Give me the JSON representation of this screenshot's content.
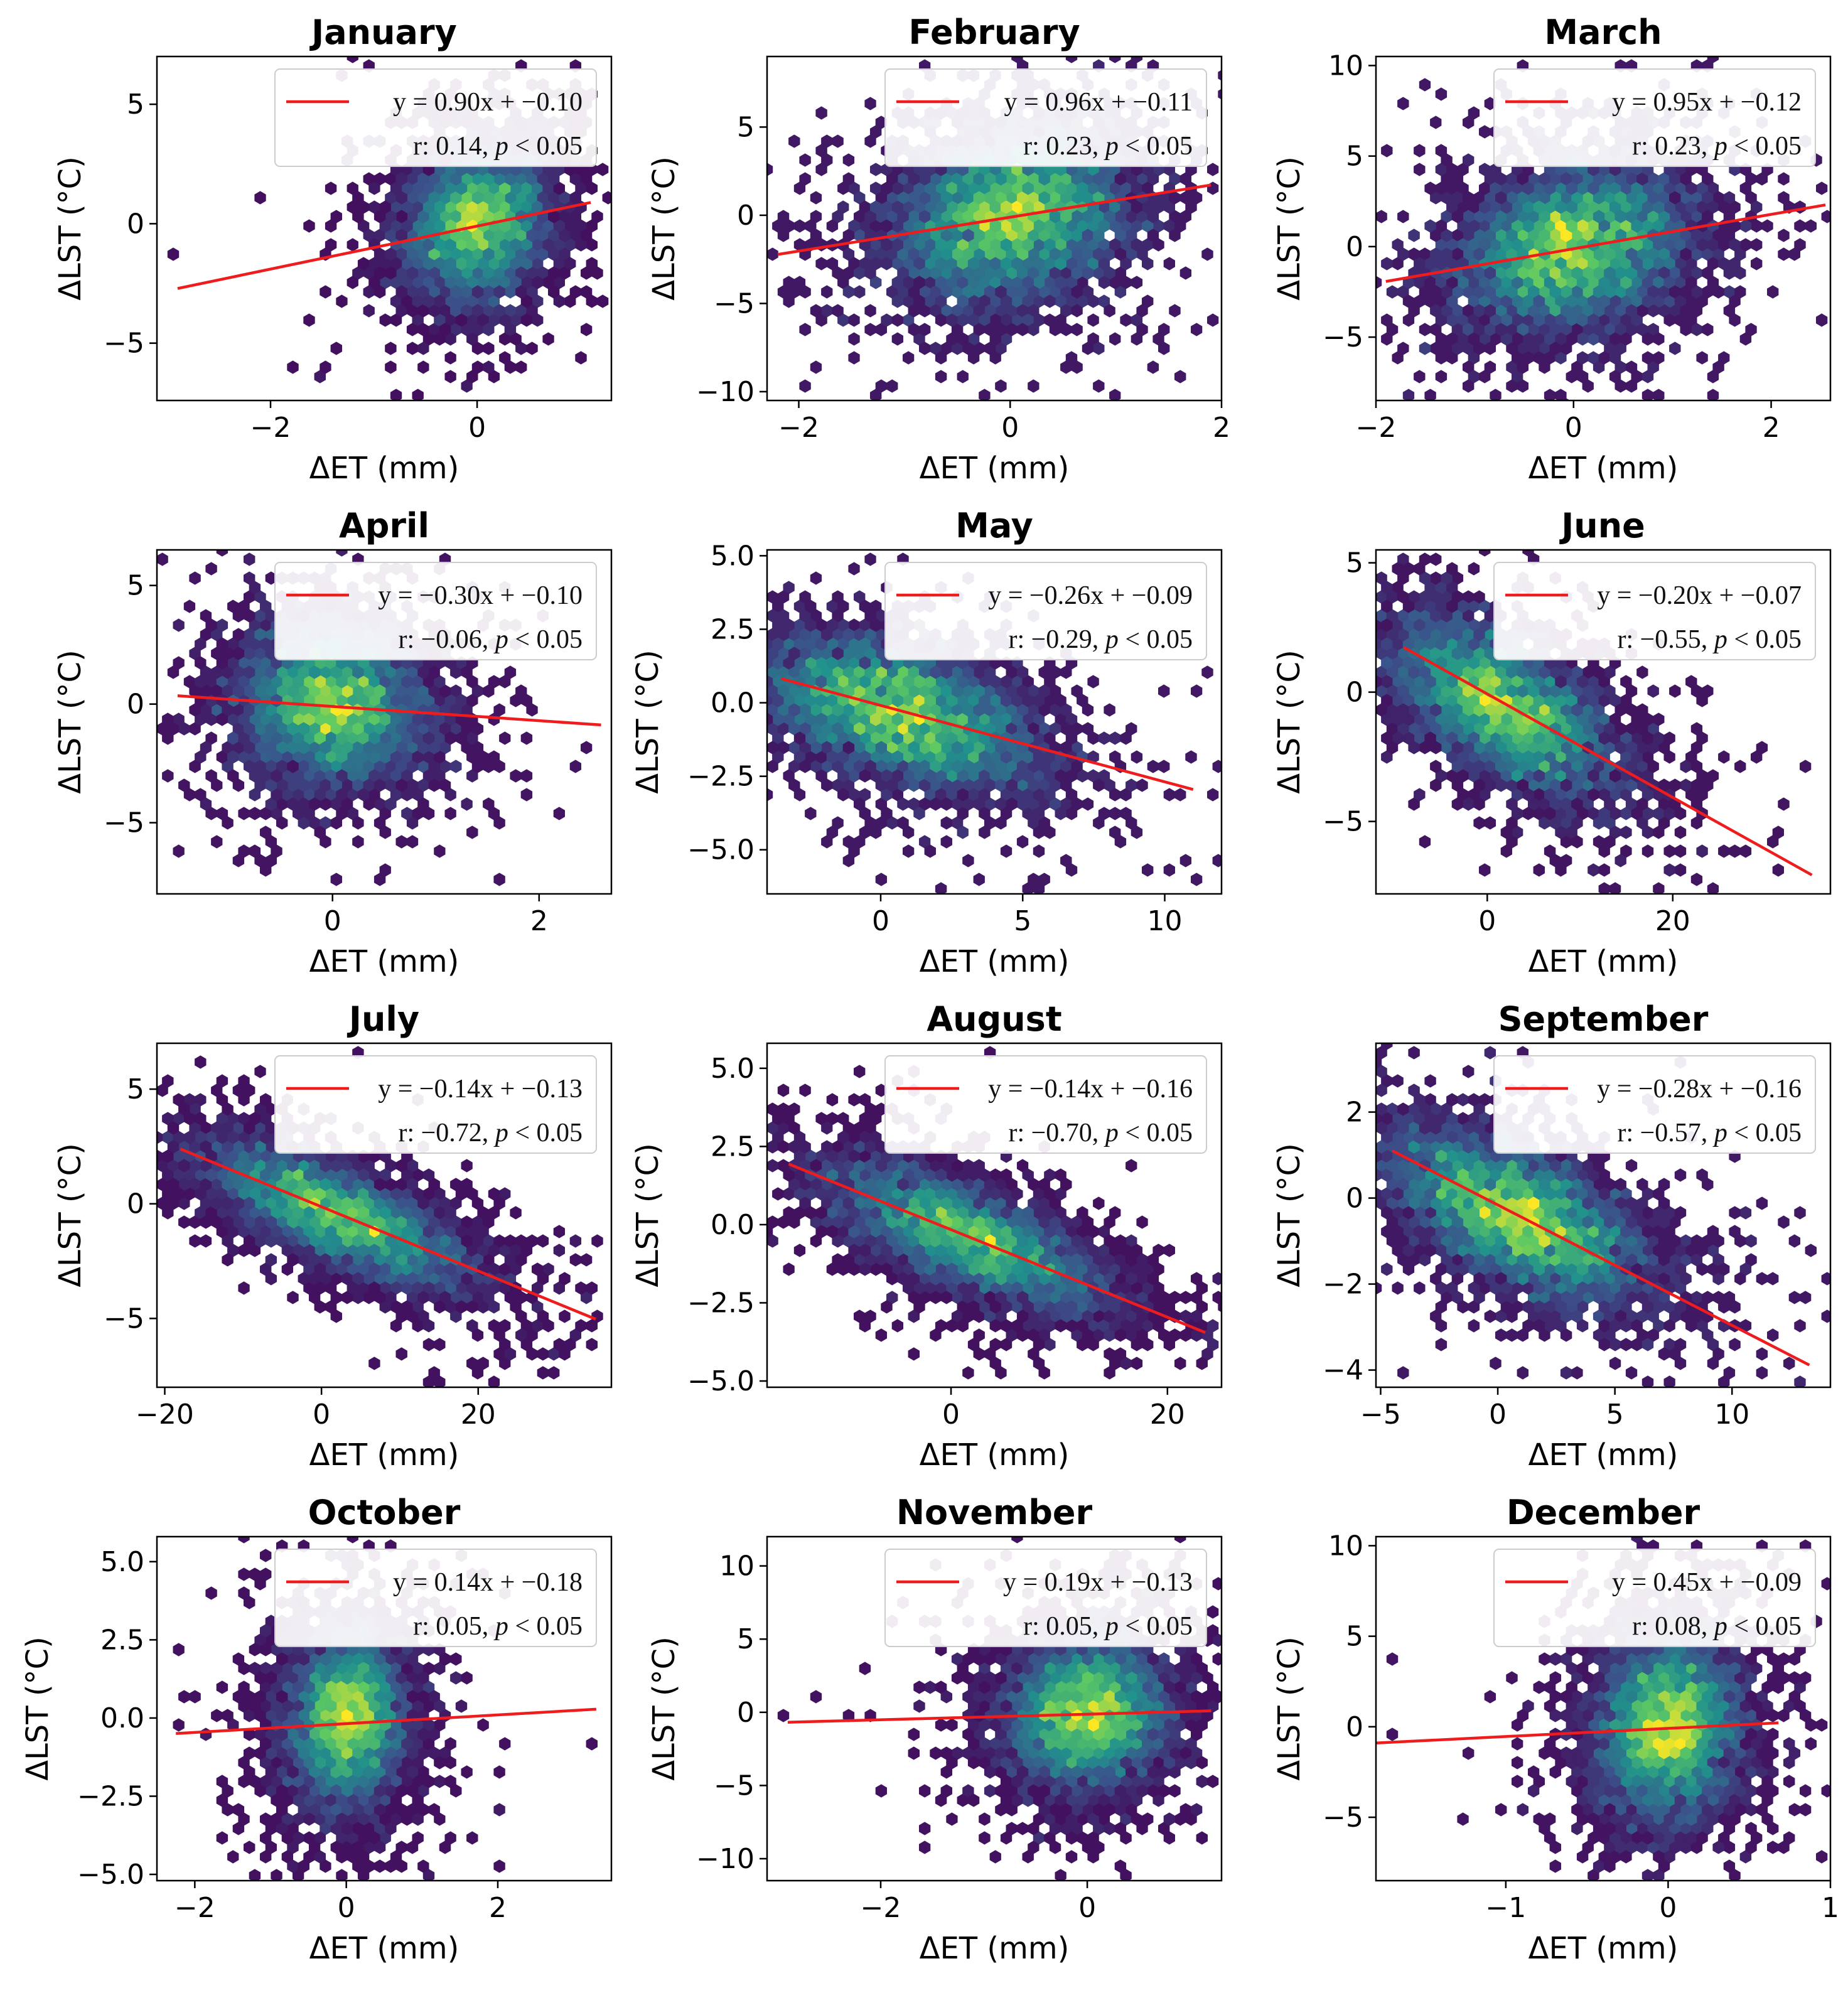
{
  "figure": {
    "x_axis_label": "ΔET (mm)",
    "y_axis_label": "ΔLST (°C)",
    "significance_text": "p < 0.05"
  },
  "colors": {
    "fit_line": "#ee1c1c",
    "hex_low": "#440154",
    "hex_mid": "#21918c",
    "hex_high": "#fde725",
    "axes": "#000000",
    "legend_border": "#cccccc"
  },
  "chart_data": [
    {
      "type": "scatter",
      "subtype": "hexbin_with_fit",
      "title": "January",
      "xlabel": "ΔET (mm)",
      "ylabel": "ΔLST (°C)",
      "xlim": [
        -3.1,
        1.3
      ],
      "ylim": [
        -7.4,
        7.0
      ],
      "xticks": [
        -2,
        0
      ],
      "xtick_labels": [
        "−2",
        "0"
      ],
      "yticks": [
        -5,
        0,
        5
      ],
      "ytick_labels": [
        "−5",
        "0",
        "5"
      ],
      "fit": {
        "slope": 0.9,
        "intercept": -0.1,
        "x_range": [
          -2.9,
          1.1
        ]
      },
      "legend_line1": "y = 0.90x + −0.10",
      "legend_line2_prefix": "r: 0.14, ",
      "r": 0.14,
      "cloud": {
        "cx": 0.0,
        "cy": 0.0,
        "sx": 0.35,
        "sy": 1.6,
        "rho": 0.14,
        "outliers": [
          [
            -2.9,
            -1.1
          ],
          [
            -1.3,
            -3.2
          ],
          [
            -0.8,
            -5.4
          ],
          [
            0.9,
            1.8
          ]
        ]
      }
    },
    {
      "type": "scatter",
      "subtype": "hexbin_with_fit",
      "title": "February",
      "xlabel": "ΔET (mm)",
      "ylabel": "ΔLST (°C)",
      "xlim": [
        -2.3,
        2.0
      ],
      "ylim": [
        -10.5,
        9.0
      ],
      "xticks": [
        -2,
        0,
        2
      ],
      "xtick_labels": [
        "−2",
        "0",
        "2"
      ],
      "yticks": [
        -10,
        -5,
        0,
        5
      ],
      "ytick_labels": [
        "−10",
        "−5",
        "0",
        "5"
      ],
      "fit": {
        "slope": 0.96,
        "intercept": -0.11,
        "x_range": [
          -2.2,
          1.9
        ]
      },
      "legend_line1": "y = 0.96x + −0.11",
      "legend_line2_prefix": "r: 0.23, ",
      "r": 0.23,
      "cloud": {
        "cx": 0.0,
        "cy": 0.0,
        "sx": 0.55,
        "sy": 2.4,
        "rho": 0.23,
        "outliers": [
          [
            -1.9,
            -6.5
          ],
          [
            0.2,
            -9.5
          ],
          [
            0.8,
            -7.6
          ],
          [
            1.2,
            -6.8
          ]
        ]
      }
    },
    {
      "type": "scatter",
      "subtype": "hexbin_with_fit",
      "title": "March",
      "xlabel": "ΔET (mm)",
      "ylabel": "ΔLST (°C)",
      "xlim": [
        -2.0,
        2.6
      ],
      "ylim": [
        -8.5,
        10.5
      ],
      "xticks": [
        -2,
        0,
        2
      ],
      "xtick_labels": [
        "−2",
        "0",
        "2"
      ],
      "yticks": [
        -5,
        0,
        5,
        10
      ],
      "ytick_labels": [
        "−5",
        "0",
        "5",
        "10"
      ],
      "fit": {
        "slope": 0.95,
        "intercept": -0.12,
        "x_range": [
          -1.9,
          2.55
        ]
      },
      "legend_line1": "y = 0.95x + −0.12",
      "legend_line2_prefix": "r: 0.23, ",
      "r": 0.23,
      "cloud": {
        "cx": 0.0,
        "cy": 0.0,
        "sx": 0.6,
        "sy": 2.3,
        "rho": 0.23,
        "outliers": [
          [
            -1.8,
            -4.8
          ],
          [
            -0.1,
            -8.0
          ],
          [
            2.3,
            2.0
          ],
          [
            1.5,
            -6.5
          ]
        ]
      }
    },
    {
      "type": "scatter",
      "subtype": "hexbin_with_fit",
      "title": "April",
      "xlabel": "ΔET (mm)",
      "ylabel": "ΔLST (°C)",
      "xlim": [
        -1.7,
        2.7
      ],
      "ylim": [
        -8.0,
        6.5
      ],
      "xticks": [
        0,
        2
      ],
      "xtick_labels": [
        "0",
        "2"
      ],
      "yticks": [
        -5,
        0,
        5
      ],
      "ytick_labels": [
        "−5",
        "0",
        "5"
      ],
      "fit": {
        "slope": -0.3,
        "intercept": -0.1,
        "x_range": [
          -1.5,
          2.6
        ]
      },
      "legend_line1": "y = −0.30x + −0.10",
      "legend_line2_prefix": "r: −0.06, ",
      "r": -0.06,
      "cloud": {
        "cx": 0.0,
        "cy": 0.0,
        "sx": 0.45,
        "sy": 1.7,
        "rho": -0.06,
        "outliers": [
          [
            -1.5,
            1.6
          ],
          [
            0.0,
            -7.4
          ],
          [
            2.5,
            -2.0
          ],
          [
            1.9,
            0.2
          ]
        ]
      }
    },
    {
      "type": "scatter",
      "subtype": "hexbin_with_fit",
      "title": "May",
      "xlabel": "ΔET (mm)",
      "ylabel": "ΔLST (°C)",
      "xlim": [
        -4.0,
        12.0
      ],
      "ylim": [
        -6.5,
        5.2
      ],
      "xticks": [
        0,
        5,
        10
      ],
      "xtick_labels": [
        "0",
        "5",
        "10"
      ],
      "yticks": [
        -5.0,
        -2.5,
        0.0,
        2.5,
        5.0
      ],
      "ytick_labels": [
        "−5.0",
        "−2.5",
        "0.0",
        "2.5",
        "5.0"
      ],
      "fit": {
        "slope": -0.26,
        "intercept": -0.09,
        "x_range": [
          -3.5,
          11.0
        ]
      },
      "legend_line1": "y = −0.26x + −0.09",
      "legend_line2_prefix": "r: −0.29, ",
      "r": -0.29,
      "cloud": {
        "cx": 0.5,
        "cy": -0.3,
        "sx": 2.5,
        "sy": 1.3,
        "rho": -0.45,
        "outliers": [
          [
            -3.4,
            2.0
          ],
          [
            0.0,
            -6.1
          ],
          [
            10.8,
            -1.9
          ],
          [
            5.6,
            -5.2
          ]
        ]
      }
    },
    {
      "type": "scatter",
      "subtype": "hexbin_with_fit",
      "title": "June",
      "xlabel": "ΔET (mm)",
      "ylabel": "ΔLST (°C)",
      "xlim": [
        -12.0,
        37.0
      ],
      "ylim": [
        -7.8,
        5.5
      ],
      "xticks": [
        0,
        20
      ],
      "xtick_labels": [
        "0",
        "20"
      ],
      "yticks": [
        -5,
        0,
        5
      ],
      "ytick_labels": [
        "−5",
        "0",
        "5"
      ],
      "fit": {
        "slope": -0.2,
        "intercept": -0.07,
        "x_range": [
          -9.0,
          35.0
        ]
      },
      "legend_line1": "y = −0.20x + −0.07",
      "legend_line2_prefix": "r: −0.55, ",
      "r": -0.55,
      "cloud": {
        "cx": 1.5,
        "cy": -0.5,
        "sx": 6.0,
        "sy": 1.7,
        "rho": -0.6,
        "outliers": [
          [
            -9.0,
            3.7
          ],
          [
            23.0,
            -7.3
          ],
          [
            34.0,
            -3.0
          ],
          [
            27.0,
            -3.0
          ]
        ]
      }
    },
    {
      "type": "scatter",
      "subtype": "hexbin_with_fit",
      "title": "July",
      "xlabel": "ΔET (mm)",
      "ylabel": "ΔLST (°C)",
      "xlim": [
        -21.0,
        37.0
      ],
      "ylim": [
        -8.0,
        7.0
      ],
      "xticks": [
        -20,
        0,
        20
      ],
      "xtick_labels": [
        "−20",
        "0",
        "20"
      ],
      "yticks": [
        -5,
        0,
        5
      ],
      "ytick_labels": [
        "−5",
        "0",
        "5"
      ],
      "fit": {
        "slope": -0.14,
        "intercept": -0.13,
        "x_range": [
          -18.0,
          35.0
        ]
      },
      "legend_line1": "y = −0.14x + −0.13",
      "legend_line2_prefix": "r: −0.72, ",
      "r": -0.72,
      "cloud": {
        "cx": 2.0,
        "cy": -0.5,
        "sx": 8.5,
        "sy": 1.6,
        "rho": -0.72,
        "outliers": [
          [
            -17.5,
            2.7
          ],
          [
            28.0,
            -7.3
          ],
          [
            34.0,
            -3.8
          ],
          [
            5.0,
            6.5
          ]
        ]
      }
    },
    {
      "type": "scatter",
      "subtype": "hexbin_with_fit",
      "title": "August",
      "xlabel": "ΔET (mm)",
      "ylabel": "ΔLST (°C)",
      "xlim": [
        -17.0,
        25.0
      ],
      "ylim": [
        -5.2,
        5.8
      ],
      "xticks": [
        0,
        20
      ],
      "xtick_labels": [
        "0",
        "20"
      ],
      "yticks": [
        -5.0,
        -2.5,
        0.0,
        2.5,
        5.0
      ],
      "ytick_labels": [
        "−5.0",
        "−2.5",
        "0.0",
        "2.5",
        "5.0"
      ],
      "fit": {
        "slope": -0.14,
        "intercept": -0.16,
        "x_range": [
          -15.0,
          23.5
        ]
      },
      "legend_line1": "y = −0.14x + −0.16",
      "legend_line2_prefix": "r: −0.70, ",
      "r": -0.7,
      "cloud": {
        "cx": 1.5,
        "cy": -0.4,
        "sx": 6.5,
        "sy": 1.2,
        "rho": -0.7,
        "outliers": [
          [
            -15.0,
            3.6
          ],
          [
            1.5,
            -4.7
          ],
          [
            23.0,
            -3.5
          ],
          [
            -8.0,
            4.0
          ]
        ]
      }
    },
    {
      "type": "scatter",
      "subtype": "hexbin_with_fit",
      "title": "September",
      "xlabel": "ΔET (mm)",
      "ylabel": "ΔLST (°C)",
      "xlim": [
        -5.2,
        14.2
      ],
      "ylim": [
        -4.4,
        3.6
      ],
      "xticks": [
        -5,
        0,
        5,
        10
      ],
      "xtick_labels": [
        "−5",
        "0",
        "5",
        "10"
      ],
      "yticks": [
        -4,
        -2,
        0,
        2
      ],
      "ytick_labels": [
        "−4",
        "−2",
        "0",
        "2"
      ],
      "fit": {
        "slope": -0.28,
        "intercept": -0.16,
        "x_range": [
          -4.5,
          13.3
        ]
      },
      "legend_line1": "y = −0.28x + −0.16",
      "legend_line2_prefix": "r: −0.57, ",
      "r": -0.57,
      "cloud": {
        "cx": 0.8,
        "cy": -0.4,
        "sx": 2.8,
        "sy": 1.0,
        "rho": -0.6,
        "outliers": [
          [
            -4.5,
            0.7
          ],
          [
            0.0,
            -3.8
          ],
          [
            13.0,
            -2.4
          ],
          [
            -0.2,
            3.3
          ]
        ]
      }
    },
    {
      "type": "scatter",
      "subtype": "hexbin_with_fit",
      "title": "October",
      "xlabel": "ΔET (mm)",
      "ylabel": "ΔLST (°C)",
      "xlim": [
        -2.5,
        3.5
      ],
      "ylim": [
        -5.2,
        5.8
      ],
      "xticks": [
        -2,
        0,
        2
      ],
      "xtick_labels": [
        "−2",
        "0",
        "2"
      ],
      "yticks": [
        -5.0,
        -2.5,
        0.0,
        2.5,
        5.0
      ],
      "ytick_labels": [
        "−5.0",
        "−2.5",
        "0.0",
        "2.5",
        "5.0"
      ],
      "fit": {
        "slope": 0.14,
        "intercept": -0.18,
        "x_range": [
          -2.25,
          3.3
        ]
      },
      "legend_line1": "y = 0.14x + −0.18",
      "legend_line2_prefix": "r: 0.05, ",
      "r": 0.05,
      "cloud": {
        "cx": 0.0,
        "cy": 0.0,
        "sx": 0.4,
        "sy": 1.4,
        "rho": 0.05,
        "outliers": [
          [
            -2.2,
            0.7
          ],
          [
            -0.5,
            -4.7
          ],
          [
            3.2,
            -0.9
          ],
          [
            2.1,
            -0.8
          ]
        ]
      }
    },
    {
      "type": "scatter",
      "subtype": "hexbin_with_fit",
      "title": "November",
      "xlabel": "ΔET (mm)",
      "ylabel": "ΔLST (°C)",
      "xlim": [
        -3.1,
        1.3
      ],
      "ylim": [
        -11.5,
        12.0
      ],
      "xticks": [
        -2,
        0
      ],
      "xtick_labels": [
        "−2",
        "0"
      ],
      "yticks": [
        -10,
        -5,
        0,
        5,
        10
      ],
      "ytick_labels": [
        "−10",
        "−5",
        "0",
        "5",
        "10"
      ],
      "fit": {
        "slope": 0.19,
        "intercept": -0.13,
        "x_range": [
          -2.9,
          1.2
        ]
      },
      "legend_line1": "y = 0.19x + −0.13",
      "legend_line2_prefix": "r: 0.05, ",
      "r": 0.05,
      "cloud": {
        "cx": 0.0,
        "cy": 0.0,
        "sx": 0.4,
        "sy": 2.5,
        "rho": 0.05,
        "outliers": [
          [
            -2.9,
            0.0
          ],
          [
            -0.3,
            -11.0
          ],
          [
            0.4,
            -11.0
          ],
          [
            -2.3,
            -0.5
          ]
        ]
      }
    },
    {
      "type": "scatter",
      "subtype": "hexbin_with_fit",
      "title": "December",
      "xlabel": "ΔET (mm)",
      "ylabel": "ΔLST (°C)",
      "xlim": [
        -1.8,
        1.0
      ],
      "ylim": [
        -8.5,
        10.5
      ],
      "xticks": [
        -1,
        0,
        1
      ],
      "xtick_labels": [
        "−1",
        "0",
        "1"
      ],
      "yticks": [
        -5,
        0,
        5,
        10
      ],
      "ytick_labels": [
        "−5",
        "0",
        "5",
        "10"
      ],
      "fit": {
        "slope": 0.45,
        "intercept": -0.09,
        "x_range": [
          -1.8,
          0.68
        ]
      },
      "legend_line1": "y = 0.45x + −0.09",
      "legend_line2_prefix": "r: 0.08, ",
      "r": 0.08,
      "cloud": {
        "cx": 0.0,
        "cy": 0.0,
        "sx": 0.22,
        "sy": 2.6,
        "rho": 0.08,
        "outliers": [
          [
            -1.7,
            -0.5
          ],
          [
            -0.1,
            -8.2
          ],
          [
            0.65,
            -0.5
          ],
          [
            -1.1,
            1.5
          ]
        ]
      }
    }
  ]
}
